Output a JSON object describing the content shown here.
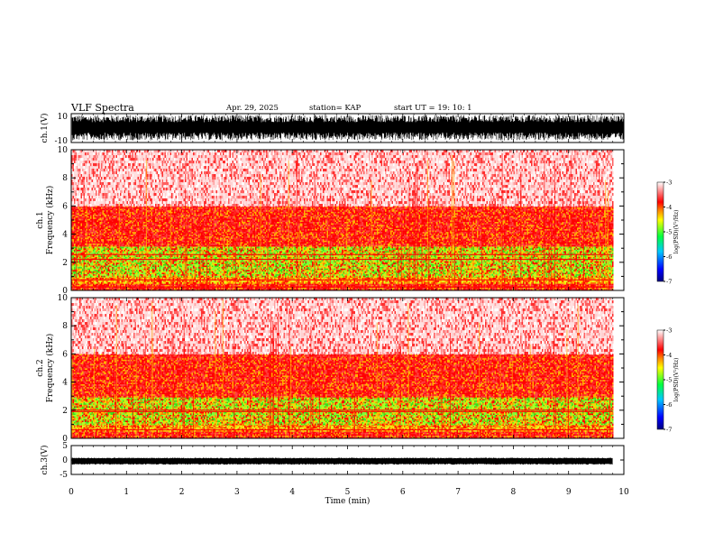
{
  "header": {
    "title": "VLF Spectra",
    "date": "Apr. 29, 2025",
    "station": "station= KAP",
    "start": "start  UT =    19: 10: 1"
  },
  "colors": {
    "spec_low": "#ff0000",
    "spec_mid": "#ffd400",
    "spec_high": "#39e01a",
    "waveform": "#000000"
  },
  "chart_data": [
    {
      "type": "line",
      "name": "ch1-waveform",
      "ylabel": "ch.1(V)",
      "ylim": [
        -10,
        10
      ],
      "yticks": [
        10,
        -10
      ],
      "xlim": [
        0,
        10
      ],
      "envelope_amplitude": 9
    },
    {
      "type": "heatmap",
      "name": "ch1-spectrogram",
      "ylabel": "ch.1\nFrequency (kHz)",
      "ylim": [
        0,
        10
      ],
      "yticks": [
        0,
        2,
        4,
        6,
        8,
        10
      ],
      "xlim": [
        0,
        9.8
      ],
      "bands_khz": [
        {
          "from": 0,
          "to": 0.5,
          "level": "red"
        },
        {
          "from": 0.5,
          "to": 1.0,
          "level": "mixed"
        },
        {
          "from": 1.0,
          "to": 3.2,
          "level": "green-yellow"
        },
        {
          "from": 3.2,
          "to": 6.0,
          "level": "red"
        },
        {
          "from": 6.0,
          "to": 10.0,
          "level": "red-sparse"
        }
      ],
      "horizontal_lines_khz": [
        0.25,
        0.75,
        2.2,
        2.55
      ],
      "colorbar": {
        "label": "log(PSD)(V²/Hz)",
        "ticks": [
          -3,
          -4,
          -5,
          -6,
          -7
        ],
        "range": [
          -7,
          -3
        ]
      }
    },
    {
      "type": "heatmap",
      "name": "ch2-spectrogram",
      "ylabel": "ch.2\nFrequency (kHz)",
      "ylim": [
        0,
        10
      ],
      "yticks": [
        0,
        2,
        4,
        6,
        8,
        10
      ],
      "xlim": [
        0,
        9.8
      ],
      "bands_khz": [
        {
          "from": 0,
          "to": 0.5,
          "level": "red"
        },
        {
          "from": 0.5,
          "to": 1.0,
          "level": "mixed"
        },
        {
          "from": 1.0,
          "to": 3.0,
          "level": "green-yellow"
        },
        {
          "from": 3.0,
          "to": 6.0,
          "level": "red"
        },
        {
          "from": 6.0,
          "to": 10.0,
          "level": "red-sparse"
        }
      ],
      "horizontal_lines_khz": [
        0.6,
        1.9,
        2.0
      ],
      "colorbar": {
        "label": "log(PSD)(V²/Hz)",
        "ticks": [
          -3,
          -4,
          -5,
          -6,
          -7
        ],
        "range": [
          -7,
          -3
        ]
      }
    },
    {
      "type": "line",
      "name": "ch3-waveform",
      "ylabel": "ch.3(V)",
      "ylim": [
        -5,
        5
      ],
      "yticks": [
        5,
        0,
        -5
      ],
      "xlim": [
        0,
        10
      ],
      "envelope": [
        -1.6,
        0.8
      ]
    }
  ],
  "xaxis": {
    "label": "Time (min)",
    "ticks": [
      "0",
      "1",
      "2",
      "3",
      "4",
      "5",
      "6",
      "7",
      "8",
      "9",
      "10"
    ],
    "range": [
      0,
      10
    ]
  }
}
